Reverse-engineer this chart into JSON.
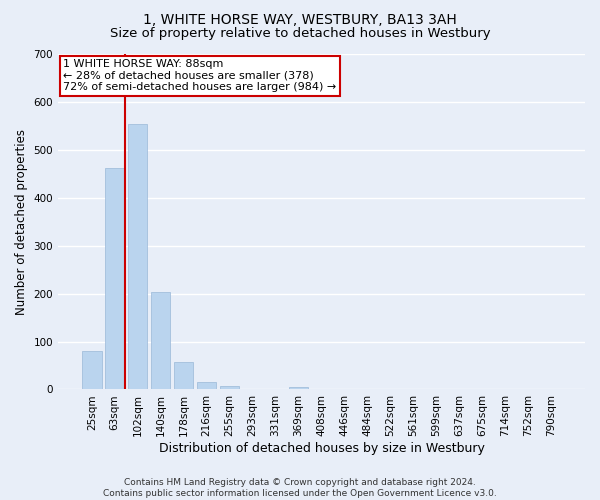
{
  "title": "1, WHITE HORSE WAY, WESTBURY, BA13 3AH",
  "subtitle": "Size of property relative to detached houses in Westbury",
  "xlabel": "Distribution of detached houses by size in Westbury",
  "ylabel": "Number of detached properties",
  "categories": [
    "25sqm",
    "63sqm",
    "102sqm",
    "140sqm",
    "178sqm",
    "216sqm",
    "255sqm",
    "293sqm",
    "331sqm",
    "369sqm",
    "408sqm",
    "446sqm",
    "484sqm",
    "522sqm",
    "561sqm",
    "599sqm",
    "637sqm",
    "675sqm",
    "714sqm",
    "752sqm",
    "790sqm"
  ],
  "values": [
    80,
    463,
    553,
    204,
    58,
    15,
    7,
    0,
    0,
    5,
    0,
    0,
    0,
    0,
    0,
    0,
    0,
    0,
    0,
    0,
    0
  ],
  "bar_color": "#bad4ee",
  "bar_edgecolor": "#9ab8d8",
  "vline_x_index": 1,
  "vline_color": "#cc0000",
  "annotation_text": "1 WHITE HORSE WAY: 88sqm\n← 28% of detached houses are smaller (378)\n72% of semi-detached houses are larger (984) →",
  "annotation_box_color": "#ffffff",
  "annotation_box_edgecolor": "#cc0000",
  "ylim": [
    0,
    700
  ],
  "yticks": [
    0,
    100,
    200,
    300,
    400,
    500,
    600,
    700
  ],
  "footer_text": "Contains HM Land Registry data © Crown copyright and database right 2024.\nContains public sector information licensed under the Open Government Licence v3.0.",
  "background_color": "#e8eef8",
  "plot_background_color": "#e8eef8",
  "grid_color": "#ffffff",
  "title_fontsize": 10,
  "subtitle_fontsize": 9.5,
  "xlabel_fontsize": 9,
  "ylabel_fontsize": 8.5,
  "tick_fontsize": 7.5,
  "footer_fontsize": 6.5,
  "annotation_fontsize": 8
}
